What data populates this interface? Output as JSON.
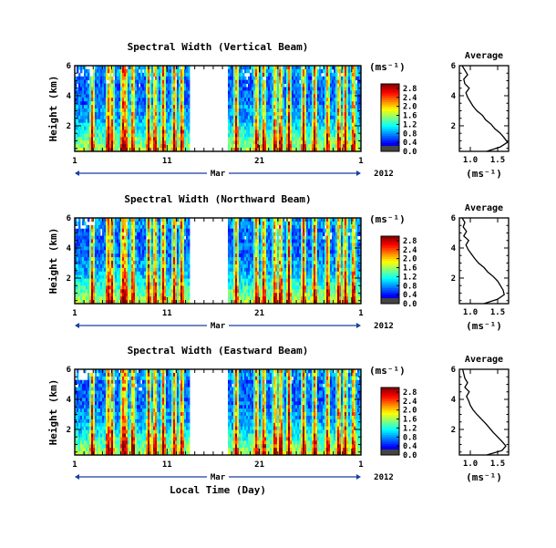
{
  "chart_data": [
    {
      "type": "heatmap",
      "title": "Spectral Width (Vertical Beam)",
      "ylabel": "Height (km)",
      "xlabel": "",
      "x_ticks": [
        "1",
        "11",
        "21",
        "1"
      ],
      "month_label": "Mar",
      "year_label": "2012",
      "y_ticks": [
        "2",
        "4",
        "6"
      ],
      "ylim": [
        0.3,
        6
      ],
      "colorbar": {
        "unit": "(ms⁻¹)",
        "ticks": [
          "0.0",
          "0.4",
          "0.8",
          "1.2",
          "1.6",
          "2.0",
          "2.4",
          "2.8"
        ],
        "range": [
          0,
          3
        ]
      },
      "data_gap_days": [
        13.5,
        17.5
      ],
      "average_profile": {
        "title": "Average",
        "xlabel": "(ms⁻¹)",
        "x_ticks": [
          "1.0",
          "1.5"
        ],
        "xlim": [
          0.8,
          1.7
        ],
        "y_ticks": [
          "2",
          "4",
          "6"
        ],
        "heights": [
          0.3,
          0.6,
          0.9,
          1.2,
          1.5,
          1.8,
          2.1,
          2.4,
          2.7,
          3.0,
          3.3,
          3.6,
          3.9,
          4.2,
          4.5,
          4.8,
          5.1,
          5.4,
          5.7,
          6.0
        ],
        "values": [
          1.3,
          1.55,
          1.68,
          1.62,
          1.55,
          1.45,
          1.38,
          1.28,
          1.22,
          1.12,
          1.05,
          1.0,
          0.95,
          0.92,
          0.98,
          0.9,
          0.88,
          0.95,
          0.9,
          0.85
        ]
      }
    },
    {
      "type": "heatmap",
      "title": "Spectral Width (Northward Beam)",
      "ylabel": "Height (km)",
      "xlabel": "",
      "x_ticks": [
        "1",
        "11",
        "21",
        "1"
      ],
      "month_label": "Mar",
      "year_label": "2012",
      "y_ticks": [
        "2",
        "4",
        "6"
      ],
      "ylim": [
        0.3,
        6
      ],
      "colorbar": {
        "unit": "(ms⁻¹)",
        "ticks": [
          "0.0",
          "0.4",
          "0.8",
          "1.2",
          "1.6",
          "2.0",
          "2.4",
          "2.8"
        ],
        "range": [
          0,
          3
        ]
      },
      "data_gap_days": [
        13.5,
        17.5
      ],
      "average_profile": {
        "title": "Average",
        "xlabel": "(ms⁻¹)",
        "x_ticks": [
          "1.0",
          "1.5"
        ],
        "xlim": [
          0.8,
          1.7
        ],
        "y_ticks": [
          "2",
          "4",
          "6"
        ],
        "heights": [
          0.3,
          0.6,
          0.9,
          1.2,
          1.5,
          1.8,
          2.1,
          2.4,
          2.7,
          3.0,
          3.3,
          3.6,
          3.9,
          4.2,
          4.5,
          4.8,
          5.1,
          5.4,
          5.7,
          6.0
        ],
        "values": [
          1.25,
          1.5,
          1.62,
          1.6,
          1.55,
          1.5,
          1.42,
          1.32,
          1.25,
          1.15,
          1.08,
          1.02,
          0.96,
          0.92,
          0.97,
          0.88,
          0.93,
          0.87,
          0.9,
          0.85
        ]
      }
    },
    {
      "type": "heatmap",
      "title": "Spectral Width (Eastward Beam)",
      "ylabel": "Height (km)",
      "xlabel": "Local Time (Day)",
      "x_ticks": [
        "1",
        "11",
        "21",
        "1"
      ],
      "month_label": "Mar",
      "year_label": "2012",
      "y_ticks": [
        "2",
        "4",
        "6"
      ],
      "ylim": [
        0.3,
        6
      ],
      "colorbar": {
        "unit": "(ms⁻¹)",
        "ticks": [
          "0.0",
          "0.4",
          "0.8",
          "1.2",
          "1.6",
          "2.0",
          "2.4",
          "2.8"
        ],
        "range": [
          0,
          3
        ]
      },
      "data_gap_days": [
        13.5,
        17.5
      ],
      "average_profile": {
        "title": "Average",
        "xlabel": "(ms⁻¹)",
        "x_ticks": [
          "1.0",
          "1.5"
        ],
        "xlim": [
          0.8,
          1.7
        ],
        "y_ticks": [
          "2",
          "4",
          "6"
        ],
        "heights": [
          0.3,
          0.6,
          0.9,
          1.2,
          1.5,
          1.8,
          2.1,
          2.4,
          2.7,
          3.0,
          3.3,
          3.6,
          3.9,
          4.2,
          4.5,
          4.8,
          5.1,
          5.4,
          5.7,
          6.0
        ],
        "values": [
          1.3,
          1.58,
          1.65,
          1.58,
          1.5,
          1.42,
          1.35,
          1.28,
          1.2,
          1.12,
          1.05,
          1.0,
          0.97,
          0.93,
          0.98,
          0.9,
          0.95,
          0.9,
          0.88,
          0.86
        ]
      }
    }
  ]
}
